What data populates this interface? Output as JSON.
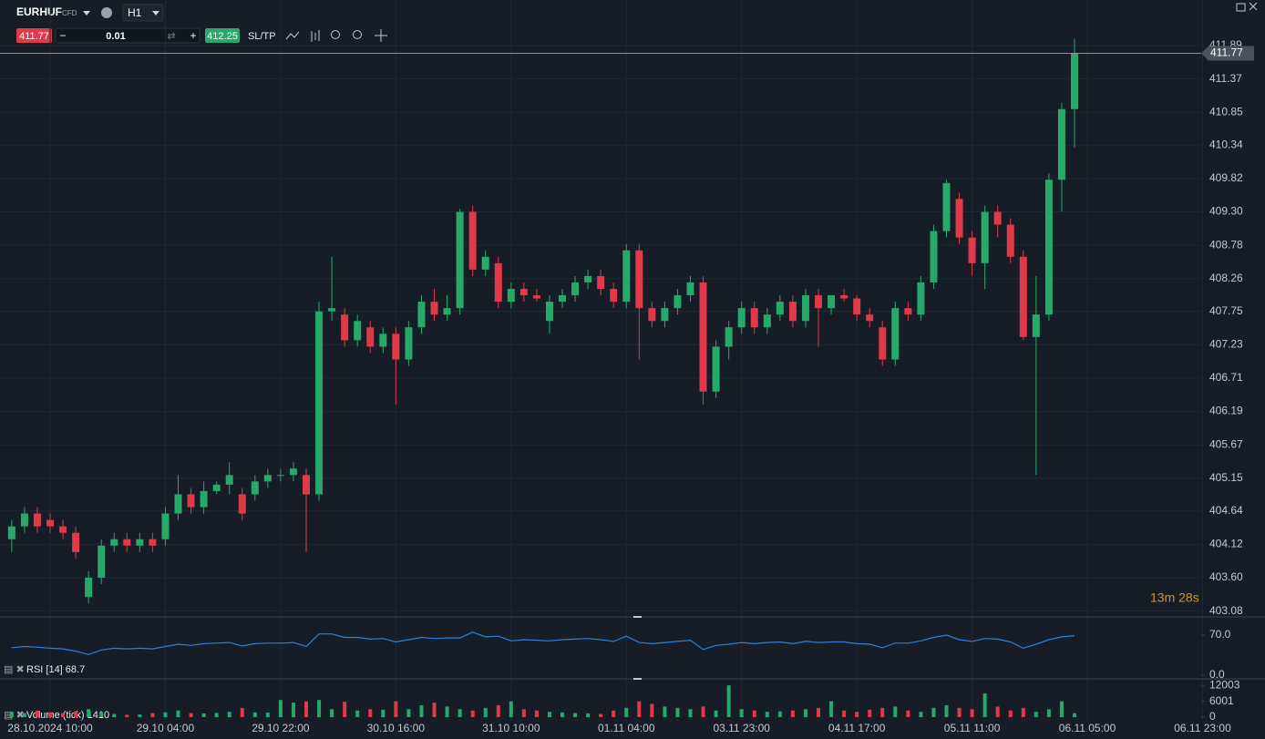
{
  "toolbar": {
    "symbol": "EURHUF",
    "badge": "CFD",
    "timeframe": "H1",
    "sell": "411.77",
    "lot": "0.01",
    "buy": "412.25",
    "sltp": "SL/TP"
  },
  "countdown": "13m 28s",
  "chart_data": [
    {
      "type": "candlestick",
      "categories": [
        null,
        null,
        null,
        "28.10.2024 10:00",
        null,
        null,
        null,
        null,
        null,
        null,
        null,
        null,
        "29.10 04:00",
        null,
        null,
        null,
        null,
        null,
        null,
        null,
        null,
        "29.10 22:00",
        null,
        null,
        null,
        null,
        null,
        null,
        null,
        null,
        "30.10 16:00",
        null,
        null,
        null,
        null,
        null,
        null,
        null,
        null,
        "31.10 10:00",
        null,
        null,
        null,
        null,
        null,
        null,
        null,
        null,
        "01.11 04:00",
        null,
        null,
        null,
        null,
        null,
        null,
        null,
        null,
        "03.11 23:00",
        null,
        null,
        null,
        null,
        null,
        null,
        null,
        null,
        "04.11 17:00",
        null,
        null,
        null,
        null,
        null,
        null,
        null,
        null,
        "05.11 11:00",
        null,
        null,
        null,
        null,
        null,
        null,
        null,
        null,
        "06.11 05:00",
        null,
        null,
        null,
        null,
        null,
        null,
        null,
        null,
        "06.11 23:00"
      ],
      "open": [
        404.2,
        404.4,
        404.6,
        404.5,
        404.4,
        404.3,
        403.3,
        403.6,
        404.1,
        404.2,
        404.1,
        404.2,
        404.2,
        404.6,
        404.9,
        404.7,
        404.95,
        405.05,
        404.9,
        404.9,
        405.1,
        405.2,
        405.2,
        405.2,
        404.9,
        407.75,
        407.7,
        407.3,
        407.5,
        407.2,
        407.4,
        407.0,
        407.5,
        407.9,
        407.7,
        407.8,
        409.3,
        408.4,
        408.5,
        407.9,
        408.1,
        408.0,
        407.6,
        407.9,
        408.0,
        408.2,
        408.3,
        408.1,
        407.9,
        408.7,
        407.8,
        407.6,
        407.8,
        408.0,
        408.2,
        406.5,
        407.2,
        407.5,
        407.8,
        407.5,
        407.7,
        407.9,
        407.6,
        408.0,
        407.8,
        408.0,
        407.95,
        407.7,
        407.5,
        407.0,
        407.8,
        407.7,
        408.2,
        409.0,
        409.5,
        408.9,
        408.5,
        409.3,
        409.1,
        408.6,
        407.35,
        407.7,
        409.8,
        410.9,
        null,
        null,
        null,
        null,
        null,
        null,
        null,
        null,
        null,
        null
      ],
      "high": [
        404.5,
        404.7,
        404.7,
        404.6,
        404.5,
        404.4,
        403.7,
        404.2,
        404.3,
        404.3,
        404.3,
        404.3,
        404.7,
        405.2,
        405.0,
        405.1,
        405.1,
        405.4,
        405.0,
        405.2,
        405.3,
        405.3,
        405.4,
        405.3,
        407.9,
        408.6,
        407.8,
        407.7,
        407.6,
        407.5,
        407.5,
        407.6,
        408.0,
        408.1,
        408.0,
        409.35,
        409.4,
        408.7,
        408.6,
        408.2,
        408.2,
        408.1,
        408.0,
        408.1,
        408.3,
        408.4,
        408.4,
        408.2,
        408.8,
        408.8,
        407.9,
        407.9,
        408.1,
        408.3,
        408.3,
        407.3,
        407.6,
        407.9,
        407.9,
        407.8,
        408.0,
        408.0,
        408.1,
        408.1,
        408.0,
        408.1,
        408.0,
        407.8,
        407.6,
        407.9,
        407.9,
        408.3,
        409.1,
        409.8,
        409.6,
        409.0,
        409.4,
        409.4,
        409.2,
        408.7,
        408.3,
        409.9,
        411.0,
        412.0,
        null,
        null,
        null,
        null,
        null,
        null,
        null,
        null,
        null,
        null
      ],
      "low": [
        404.0,
        404.3,
        404.3,
        404.3,
        404.2,
        403.9,
        403.2,
        403.5,
        404.0,
        404.0,
        404.0,
        404.0,
        404.1,
        404.5,
        404.6,
        404.6,
        404.9,
        404.9,
        404.5,
        404.8,
        405.0,
        405.1,
        405.1,
        404.0,
        404.8,
        407.6,
        407.2,
        407.2,
        407.1,
        407.1,
        406.3,
        406.9,
        407.4,
        407.6,
        407.6,
        407.7,
        408.3,
        408.3,
        407.8,
        407.8,
        407.9,
        407.9,
        407.4,
        407.8,
        407.9,
        408.1,
        408.0,
        407.8,
        407.8,
        407.0,
        407.5,
        407.5,
        407.7,
        407.9,
        406.3,
        406.4,
        407.0,
        407.4,
        407.4,
        407.4,
        407.6,
        407.5,
        407.5,
        407.2,
        407.7,
        407.9,
        407.6,
        407.5,
        406.9,
        406.9,
        407.6,
        407.6,
        408.1,
        408.9,
        408.8,
        408.3,
        408.1,
        408.9,
        408.5,
        407.3,
        405.2,
        407.6,
        409.3,
        410.3,
        null,
        null,
        null,
        null,
        null,
        null,
        null,
        null,
        null,
        null
      ],
      "close": [
        404.4,
        404.6,
        404.4,
        404.4,
        404.3,
        404.0,
        403.6,
        404.1,
        404.2,
        404.1,
        404.2,
        404.1,
        404.6,
        404.9,
        404.7,
        404.95,
        405.05,
        405.2,
        404.6,
        405.1,
        405.2,
        405.2,
        405.3,
        404.9,
        407.75,
        407.8,
        407.3,
        407.6,
        407.2,
        407.4,
        407.0,
        407.5,
        407.9,
        407.7,
        407.8,
        409.3,
        408.4,
        408.6,
        407.9,
        408.1,
        408.0,
        407.95,
        407.9,
        408.0,
        408.2,
        408.3,
        408.1,
        407.9,
        408.7,
        407.8,
        407.6,
        407.8,
        408.0,
        408.2,
        406.5,
        407.2,
        407.5,
        407.8,
        407.5,
        407.7,
        407.9,
        407.6,
        408.0,
        407.8,
        408.0,
        407.95,
        407.7,
        407.6,
        407.0,
        407.8,
        407.7,
        408.2,
        409.0,
        409.75,
        408.9,
        408.5,
        409.3,
        409.1,
        408.6,
        407.35,
        407.7,
        409.8,
        410.9,
        411.77,
        null,
        null,
        null,
        null,
        null,
        null,
        null,
        null,
        null,
        null
      ],
      "up_color": "#27a96c",
      "down_color": "#e0394a",
      "current_price": 411.77,
      "ylim": [
        402.99,
        412.6
      ],
      "yticks": [
        411.89,
        411.37,
        410.85,
        410.34,
        409.82,
        {
          "value": 409.3,
          "label": "409.30"
        },
        408.78,
        408.26,
        407.75,
        407.23,
        406.71,
        406.19,
        405.67,
        405.15,
        404.64,
        404.12,
        {
          "value": 403.6,
          "label": "403.60"
        },
        403.08
      ],
      "grid": true
    },
    {
      "type": "line",
      "legend": "RSI [14] 68.7",
      "color": "#2f7fd8",
      "values": [
        48,
        50,
        49,
        47,
        46,
        42,
        36,
        44,
        47,
        46,
        47,
        46,
        50,
        54,
        52,
        55,
        56,
        57,
        51,
        55,
        56,
        56,
        57,
        50,
        72,
        72,
        66,
        66,
        63,
        64,
        58,
        62,
        66,
        64,
        65,
        65,
        75,
        67,
        68,
        60,
        62,
        61,
        60,
        62,
        63,
        64,
        62,
        59,
        68,
        57,
        55,
        57,
        59,
        61,
        45,
        52,
        54,
        57,
        55,
        57,
        58,
        55,
        59,
        57,
        58,
        58,
        55,
        54,
        48,
        56,
        56,
        60,
        66,
        70,
        62,
        59,
        64,
        63,
        58,
        47,
        54,
        62,
        67,
        69,
        null,
        null,
        null,
        null,
        null,
        null,
        null,
        null,
        null,
        null
      ],
      "ylim": [
        -6.4,
        98.6
      ],
      "yticks": [
        {
          "value": 70,
          "label": "70.0"
        },
        {
          "value": 0,
          "label": "0.0"
        }
      ]
    },
    {
      "type": "bar",
      "legend": "Volume (tick) 1410",
      "values": [
        2000,
        1500,
        2500,
        1800,
        1500,
        2200,
        3000,
        2000,
        1200,
        900,
        1000,
        1500,
        1800,
        2500,
        1500,
        1400,
        1600,
        2000,
        3500,
        1800,
        1700,
        6500,
        5500,
        6000,
        6500,
        3000,
        5800,
        2500,
        3000,
        2800,
        6000,
        3000,
        4500,
        5500,
        4000,
        3000,
        2500,
        3500,
        4500,
        6000,
        3000,
        2500,
        2000,
        1800,
        1500,
        1400,
        1200,
        2500,
        3500,
        6000,
        5000,
        4000,
        3500,
        3000,
        4000,
        2500,
        12000,
        3000,
        2500,
        2000,
        2200,
        2500,
        3000,
        3500,
        6000,
        2500,
        2000,
        2800,
        3500,
        4000,
        2500,
        2000,
        3500,
        4500,
        3500,
        3000,
        9000,
        4000,
        2500,
        3500,
        2000,
        3000,
        6000,
        1500,
        null,
        null,
        null,
        null,
        null,
        null,
        null,
        null,
        null,
        null
      ],
      "ylim": [
        0,
        13100
      ],
      "yticks": [
        0,
        6001,
        12003
      ]
    }
  ]
}
